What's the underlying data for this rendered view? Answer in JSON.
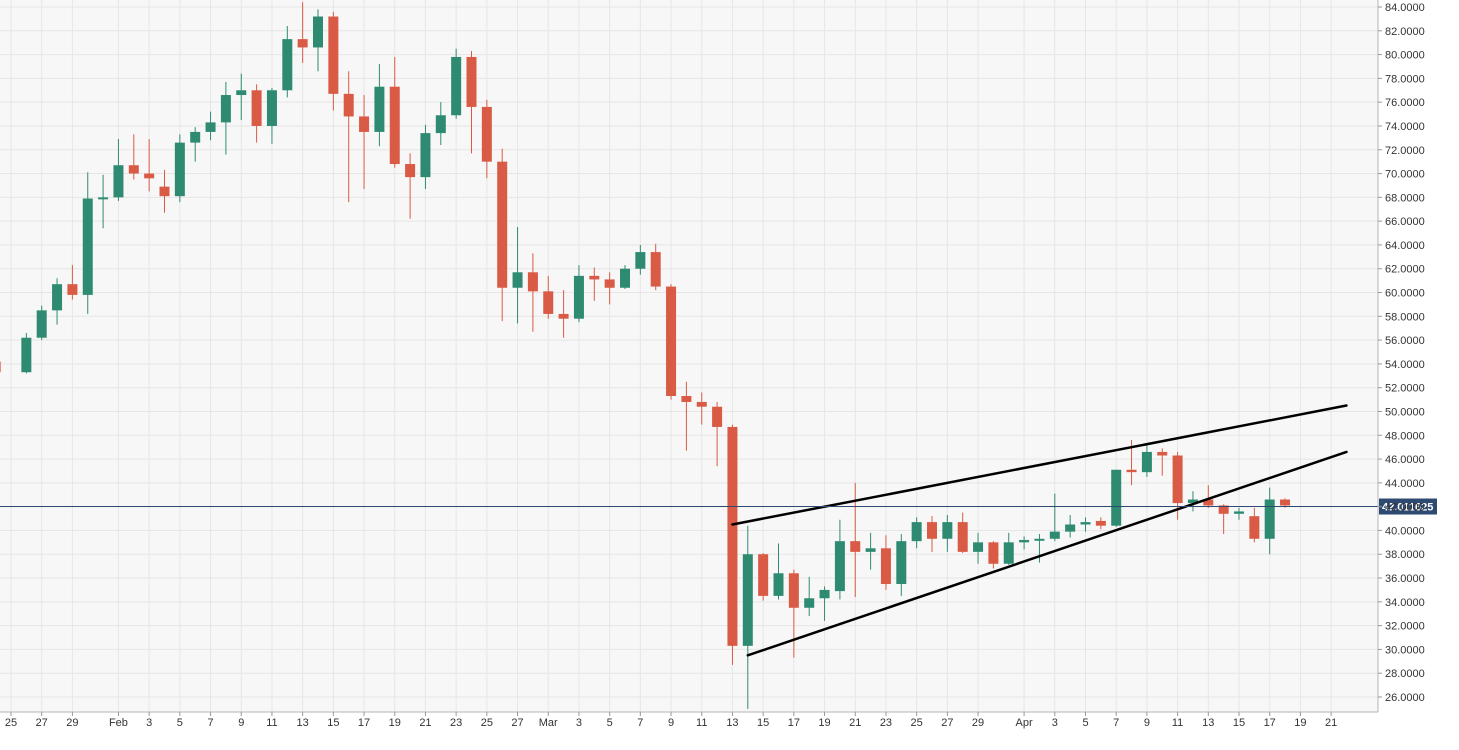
{
  "chart_data": {
    "type": "candlestick",
    "title": "",
    "xlabel": "",
    "ylabel": "",
    "ylim": [
      25,
      84.5
    ],
    "grid": true,
    "colors": {
      "up": "#2e8b72",
      "down": "#d95b45",
      "grid": "#e6e6e6",
      "background": "#f7f7f7",
      "price_line": "#2e4a73",
      "price_label_bg": "#2e4a73",
      "trendline": "#000000"
    },
    "y_ticks": [
      "84.0000",
      "82.0000",
      "80.0000",
      "78.0000",
      "76.0000",
      "74.0000",
      "72.0000",
      "70.0000",
      "68.0000",
      "66.0000",
      "64.0000",
      "62.0000",
      "60.0000",
      "58.0000",
      "56.0000",
      "54.0000",
      "52.0000",
      "50.0000",
      "48.0000",
      "46.0000",
      "44.0000",
      "42.0000",
      "40.0000",
      "38.0000",
      "36.0000",
      "34.0000",
      "32.0000",
      "30.0000",
      "28.0000",
      "26.0000"
    ],
    "x_ticks": [
      {
        "label": "25",
        "date": "2021-01-25"
      },
      {
        "label": "27",
        "date": "2021-01-27"
      },
      {
        "label": "29",
        "date": "2021-01-29"
      },
      {
        "label": "Feb",
        "date": "2021-02-01"
      },
      {
        "label": "3",
        "date": "2021-02-03"
      },
      {
        "label": "5",
        "date": "2021-02-05"
      },
      {
        "label": "7",
        "date": "2021-02-07"
      },
      {
        "label": "9",
        "date": "2021-02-09"
      },
      {
        "label": "11",
        "date": "2021-02-11"
      },
      {
        "label": "13",
        "date": "2021-02-13"
      },
      {
        "label": "15",
        "date": "2021-02-15"
      },
      {
        "label": "17",
        "date": "2021-02-17"
      },
      {
        "label": "19",
        "date": "2021-02-19"
      },
      {
        "label": "21",
        "date": "2021-02-21"
      },
      {
        "label": "23",
        "date": "2021-02-23"
      },
      {
        "label": "25",
        "date": "2021-02-25"
      },
      {
        "label": "27",
        "date": "2021-02-27"
      },
      {
        "label": "Mar",
        "date": "2021-03-01"
      },
      {
        "label": "3",
        "date": "2021-03-03"
      },
      {
        "label": "5",
        "date": "2021-03-05"
      },
      {
        "label": "7",
        "date": "2021-03-07"
      },
      {
        "label": "9",
        "date": "2021-03-09"
      },
      {
        "label": "11",
        "date": "2021-03-11"
      },
      {
        "label": "13",
        "date": "2021-03-13"
      },
      {
        "label": "15",
        "date": "2021-03-15"
      },
      {
        "label": "17",
        "date": "2021-03-17"
      },
      {
        "label": "19",
        "date": "2021-03-19"
      },
      {
        "label": "21",
        "date": "2021-03-21"
      },
      {
        "label": "23",
        "date": "2021-03-23"
      },
      {
        "label": "25",
        "date": "2021-03-25"
      },
      {
        "label": "27",
        "date": "2021-03-27"
      },
      {
        "label": "29",
        "date": "2021-03-29"
      },
      {
        "label": "Apr",
        "date": "2021-04-01"
      },
      {
        "label": "3",
        "date": "2021-04-03"
      },
      {
        "label": "5",
        "date": "2021-04-05"
      },
      {
        "label": "7",
        "date": "2021-04-07"
      },
      {
        "label": "9",
        "date": "2021-04-09"
      },
      {
        "label": "11",
        "date": "2021-04-11"
      },
      {
        "label": "13",
        "date": "2021-04-13"
      },
      {
        "label": "15",
        "date": "2021-04-15"
      },
      {
        "label": "17",
        "date": "2021-04-17"
      },
      {
        "label": "19",
        "date": "2021-04-19"
      },
      {
        "label": "21",
        "date": "2021-04-21"
      }
    ],
    "x_range": [
      "2021-01-24",
      "2021-04-22"
    ],
    "current_price": {
      "value": 42.011625,
      "label": "42.011625"
    },
    "candles": [
      {
        "date": "2021-01-24",
        "o": 54.2,
        "h": 54.6,
        "l": 52.3,
        "c": 53.3
      },
      {
        "date": "2021-01-26",
        "o": 53.3,
        "h": 56.6,
        "l": 53.2,
        "c": 56.2
      },
      {
        "date": "2021-01-27",
        "o": 56.2,
        "h": 58.9,
        "l": 56.0,
        "c": 58.5
      },
      {
        "date": "2021-01-28",
        "o": 58.5,
        "h": 61.2,
        "l": 57.3,
        "c": 60.7
      },
      {
        "date": "2021-01-29",
        "o": 60.7,
        "h": 62.3,
        "l": 59.4,
        "c": 59.8
      },
      {
        "date": "2021-01-30",
        "o": 59.8,
        "h": 70.1,
        "l": 58.2,
        "c": 67.9
      },
      {
        "date": "2021-01-31",
        "o": 67.9,
        "h": 69.9,
        "l": 65.4,
        "c": 68.0
      },
      {
        "date": "2021-02-01",
        "o": 68.0,
        "h": 72.9,
        "l": 67.7,
        "c": 70.7
      },
      {
        "date": "2021-02-02",
        "o": 70.7,
        "h": 73.3,
        "l": 69.5,
        "c": 70.0
      },
      {
        "date": "2021-02-03",
        "o": 70.0,
        "h": 72.9,
        "l": 68.5,
        "c": 69.6
      },
      {
        "date": "2021-02-04",
        "o": 68.9,
        "h": 70.3,
        "l": 66.7,
        "c": 68.1
      },
      {
        "date": "2021-02-05",
        "o": 68.1,
        "h": 73.3,
        "l": 67.6,
        "c": 72.6
      },
      {
        "date": "2021-02-06",
        "o": 72.6,
        "h": 73.9,
        "l": 71.0,
        "c": 73.5
      },
      {
        "date": "2021-02-07",
        "o": 73.5,
        "h": 75.2,
        "l": 72.8,
        "c": 74.3
      },
      {
        "date": "2021-02-08",
        "o": 74.3,
        "h": 77.7,
        "l": 71.6,
        "c": 76.6
      },
      {
        "date": "2021-02-09",
        "o": 76.6,
        "h": 78.4,
        "l": 74.5,
        "c": 77.0
      },
      {
        "date": "2021-02-10",
        "o": 77.0,
        "h": 77.5,
        "l": 72.6,
        "c": 74.0
      },
      {
        "date": "2021-02-11",
        "o": 74.0,
        "h": 77.2,
        "l": 72.5,
        "c": 77.0
      },
      {
        "date": "2021-02-12",
        "o": 77.0,
        "h": 82.4,
        "l": 76.4,
        "c": 81.3
      },
      {
        "date": "2021-02-13",
        "o": 81.3,
        "h": 84.4,
        "l": 79.3,
        "c": 80.6
      },
      {
        "date": "2021-02-14",
        "o": 80.6,
        "h": 83.8,
        "l": 78.6,
        "c": 83.2
      },
      {
        "date": "2021-02-15",
        "o": 83.2,
        "h": 83.6,
        "l": 75.3,
        "c": 76.7
      },
      {
        "date": "2021-02-16",
        "o": 76.7,
        "h": 78.6,
        "l": 67.6,
        "c": 74.8
      },
      {
        "date": "2021-02-17",
        "o": 74.8,
        "h": 76.6,
        "l": 68.7,
        "c": 73.5
      },
      {
        "date": "2021-02-18",
        "o": 73.5,
        "h": 79.2,
        "l": 72.3,
        "c": 77.3
      },
      {
        "date": "2021-02-19",
        "o": 77.3,
        "h": 79.8,
        "l": 70.5,
        "c": 70.8
      },
      {
        "date": "2021-02-20",
        "o": 70.8,
        "h": 71.7,
        "l": 66.2,
        "c": 69.7
      },
      {
        "date": "2021-02-21",
        "o": 69.7,
        "h": 74.1,
        "l": 68.7,
        "c": 73.4
      },
      {
        "date": "2021-02-22",
        "o": 73.4,
        "h": 76.0,
        "l": 72.4,
        "c": 74.9
      },
      {
        "date": "2021-02-23",
        "o": 74.9,
        "h": 80.5,
        "l": 74.6,
        "c": 79.8
      },
      {
        "date": "2021-02-24",
        "o": 79.8,
        "h": 80.3,
        "l": 71.7,
        "c": 75.6
      },
      {
        "date": "2021-02-25",
        "o": 75.6,
        "h": 76.2,
        "l": 69.6,
        "c": 71.0
      },
      {
        "date": "2021-02-26",
        "o": 71.0,
        "h": 72.1,
        "l": 57.6,
        "c": 60.4
      },
      {
        "date": "2021-02-27",
        "o": 60.4,
        "h": 65.5,
        "l": 57.4,
        "c": 61.7
      },
      {
        "date": "2021-02-28",
        "o": 61.7,
        "h": 63.3,
        "l": 56.7,
        "c": 60.1
      },
      {
        "date": "2021-03-01",
        "o": 60.1,
        "h": 61.4,
        "l": 57.8,
        "c": 58.2
      },
      {
        "date": "2021-03-02",
        "o": 58.2,
        "h": 60.2,
        "l": 56.2,
        "c": 57.8
      },
      {
        "date": "2021-03-03",
        "o": 57.8,
        "h": 62.3,
        "l": 57.5,
        "c": 61.4
      },
      {
        "date": "2021-03-04",
        "o": 61.4,
        "h": 62.1,
        "l": 59.3,
        "c": 61.1
      },
      {
        "date": "2021-03-05",
        "o": 61.1,
        "h": 61.7,
        "l": 59.0,
        "c": 60.4
      },
      {
        "date": "2021-03-06",
        "o": 60.4,
        "h": 62.3,
        "l": 60.3,
        "c": 62.0
      },
      {
        "date": "2021-03-07",
        "o": 62.0,
        "h": 64.0,
        "l": 61.5,
        "c": 63.4
      },
      {
        "date": "2021-03-08",
        "o": 63.4,
        "h": 64.1,
        "l": 60.2,
        "c": 60.5
      },
      {
        "date": "2021-03-09",
        "o": 60.5,
        "h": 60.7,
        "l": 51.0,
        "c": 51.3
      },
      {
        "date": "2021-03-10",
        "o": 51.3,
        "h": 52.5,
        "l": 46.7,
        "c": 50.8
      },
      {
        "date": "2021-03-11",
        "o": 50.8,
        "h": 51.6,
        "l": 48.9,
        "c": 50.4
      },
      {
        "date": "2021-03-12",
        "o": 50.4,
        "h": 50.8,
        "l": 45.4,
        "c": 48.7
      },
      {
        "date": "2021-03-13",
        "o": 48.7,
        "h": 48.9,
        "l": 28.7,
        "c": 30.3
      },
      {
        "date": "2021-03-14",
        "o": 30.3,
        "h": 40.4,
        "l": 25.0,
        "c": 38.0
      },
      {
        "date": "2021-03-15",
        "o": 38.0,
        "h": 38.1,
        "l": 34.1,
        "c": 34.5
      },
      {
        "date": "2021-03-16",
        "o": 34.5,
        "h": 38.9,
        "l": 34.2,
        "c": 36.4
      },
      {
        "date": "2021-03-17",
        "o": 36.4,
        "h": 36.7,
        "l": 29.3,
        "c": 33.5
      },
      {
        "date": "2021-03-18",
        "o": 33.5,
        "h": 36.1,
        "l": 32.8,
        "c": 34.3
      },
      {
        "date": "2021-03-19",
        "o": 34.3,
        "h": 35.3,
        "l": 32.4,
        "c": 35.0
      },
      {
        "date": "2021-03-20",
        "o": 34.9,
        "h": 40.9,
        "l": 34.2,
        "c": 39.1
      },
      {
        "date": "2021-03-21",
        "o": 39.1,
        "h": 44.0,
        "l": 34.4,
        "c": 38.2
      },
      {
        "date": "2021-03-22",
        "o": 38.2,
        "h": 39.8,
        "l": 36.7,
        "c": 38.5
      },
      {
        "date": "2021-03-23",
        "o": 38.5,
        "h": 39.6,
        "l": 35.0,
        "c": 35.5
      },
      {
        "date": "2021-03-24",
        "o": 35.5,
        "h": 39.7,
        "l": 34.5,
        "c": 39.1
      },
      {
        "date": "2021-03-25",
        "o": 39.1,
        "h": 41.1,
        "l": 38.5,
        "c": 40.7
      },
      {
        "date": "2021-03-26",
        "o": 40.7,
        "h": 41.2,
        "l": 38.2,
        "c": 39.3
      },
      {
        "date": "2021-03-27",
        "o": 39.3,
        "h": 41.3,
        "l": 38.2,
        "c": 40.7
      },
      {
        "date": "2021-03-28",
        "o": 40.7,
        "h": 41.5,
        "l": 38.1,
        "c": 38.2
      },
      {
        "date": "2021-03-29",
        "o": 38.2,
        "h": 39.8,
        "l": 37.2,
        "c": 39.0
      },
      {
        "date": "2021-03-30",
        "o": 39.0,
        "h": 39.1,
        "l": 36.8,
        "c": 37.2
      },
      {
        "date": "2021-03-31",
        "o": 37.2,
        "h": 39.8,
        "l": 37.1,
        "c": 39.0
      },
      {
        "date": "2021-04-01",
        "o": 39.0,
        "h": 39.5,
        "l": 38.4,
        "c": 39.2
      },
      {
        "date": "2021-04-02",
        "o": 39.2,
        "h": 39.7,
        "l": 37.3,
        "c": 39.3
      },
      {
        "date": "2021-04-03",
        "o": 39.3,
        "h": 43.1,
        "l": 39.1,
        "c": 39.9
      },
      {
        "date": "2021-04-04",
        "o": 39.9,
        "h": 41.3,
        "l": 39.4,
        "c": 40.5
      },
      {
        "date": "2021-04-05",
        "o": 40.5,
        "h": 41.1,
        "l": 39.9,
        "c": 40.7
      },
      {
        "date": "2021-04-06",
        "o": 40.8,
        "h": 41.1,
        "l": 40.1,
        "c": 40.4
      },
      {
        "date": "2021-04-07",
        "o": 40.4,
        "h": 45.1,
        "l": 40.3,
        "c": 45.1
      },
      {
        "date": "2021-04-08",
        "o": 45.1,
        "h": 47.6,
        "l": 43.8,
        "c": 44.9
      },
      {
        "date": "2021-04-09",
        "o": 44.9,
        "h": 47.3,
        "l": 44.5,
        "c": 46.6
      },
      {
        "date": "2021-04-10",
        "o": 46.6,
        "h": 46.9,
        "l": 44.6,
        "c": 46.3
      },
      {
        "date": "2021-04-11",
        "o": 46.3,
        "h": 46.6,
        "l": 40.9,
        "c": 42.3
      },
      {
        "date": "2021-04-12",
        "o": 42.3,
        "h": 43.3,
        "l": 41.6,
        "c": 42.6
      },
      {
        "date": "2021-04-13",
        "o": 42.6,
        "h": 43.8,
        "l": 41.9,
        "c": 42.1
      },
      {
        "date": "2021-04-14",
        "o": 42.1,
        "h": 42.2,
        "l": 39.7,
        "c": 41.4
      },
      {
        "date": "2021-04-15",
        "o": 41.4,
        "h": 41.9,
        "l": 40.9,
        "c": 41.6
      },
      {
        "date": "2021-04-16",
        "o": 41.2,
        "h": 41.9,
        "l": 39.0,
        "c": 39.3
      },
      {
        "date": "2021-04-17",
        "o": 39.3,
        "h": 43.6,
        "l": 38.0,
        "c": 42.6
      },
      {
        "date": "2021-04-18",
        "o": 42.6,
        "h": 42.7,
        "l": 41.9,
        "c": 42.1
      }
    ],
    "trendlines": [
      {
        "name": "upper",
        "from": {
          "date": "2021-03-13",
          "value": 40.5
        },
        "to": {
          "date": "2021-04-22",
          "value": 50.5
        }
      },
      {
        "name": "lower",
        "from": {
          "date": "2021-03-14",
          "value": 29.5
        },
        "to": {
          "date": "2021-04-22",
          "value": 46.6
        }
      }
    ]
  }
}
